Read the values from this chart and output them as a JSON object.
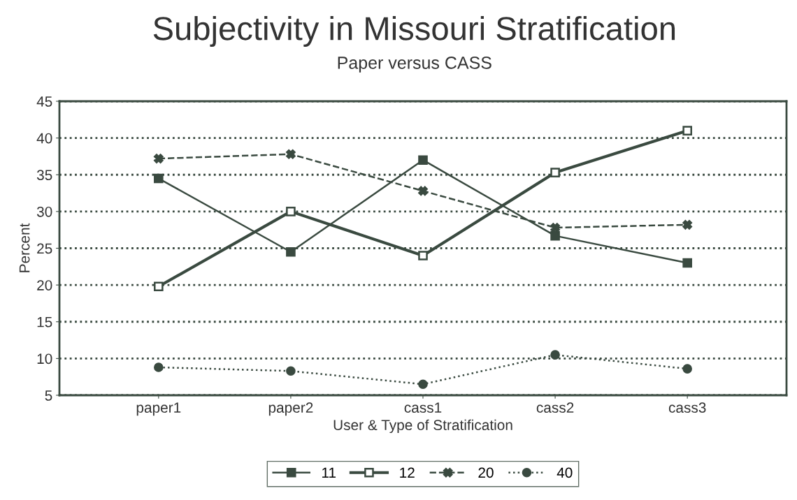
{
  "chart_data": {
    "type": "line",
    "title": "Subjectivity in Missouri Stratification",
    "subtitle": "Paper versus CASS",
    "xlabel": "User & Type of Stratification",
    "ylabel": "Percent",
    "categories": [
      "paper1",
      "paper2",
      "cass1",
      "cass2",
      "cass3"
    ],
    "series": [
      {
        "name": "11",
        "color": "#3a4a40",
        "values": [
          34.5,
          24.5,
          37,
          26.7,
          23
        ],
        "marker": "square",
        "line_style": "solid"
      },
      {
        "name": "12",
        "color": "#3a4a40",
        "values": [
          19.8,
          30,
          24,
          35.3,
          41
        ],
        "marker": "square",
        "line_style": "solid"
      },
      {
        "name": "20",
        "color": "#3a4a40",
        "values": [
          37.2,
          37.8,
          32.8,
          27.8,
          28.2
        ],
        "marker": "cross",
        "line_style": "dashed"
      },
      {
        "name": "40",
        "color": "#3a4a40",
        "values": [
          8.8,
          8.3,
          6.5,
          10.5,
          8.6
        ],
        "marker": "circle",
        "line_style": "dotted"
      }
    ],
    "ylim": [
      5,
      45
    ],
    "yticks": [
      5,
      10,
      15,
      20,
      25,
      30,
      35,
      40,
      45
    ],
    "grid": "y",
    "legend": "bottom"
  }
}
